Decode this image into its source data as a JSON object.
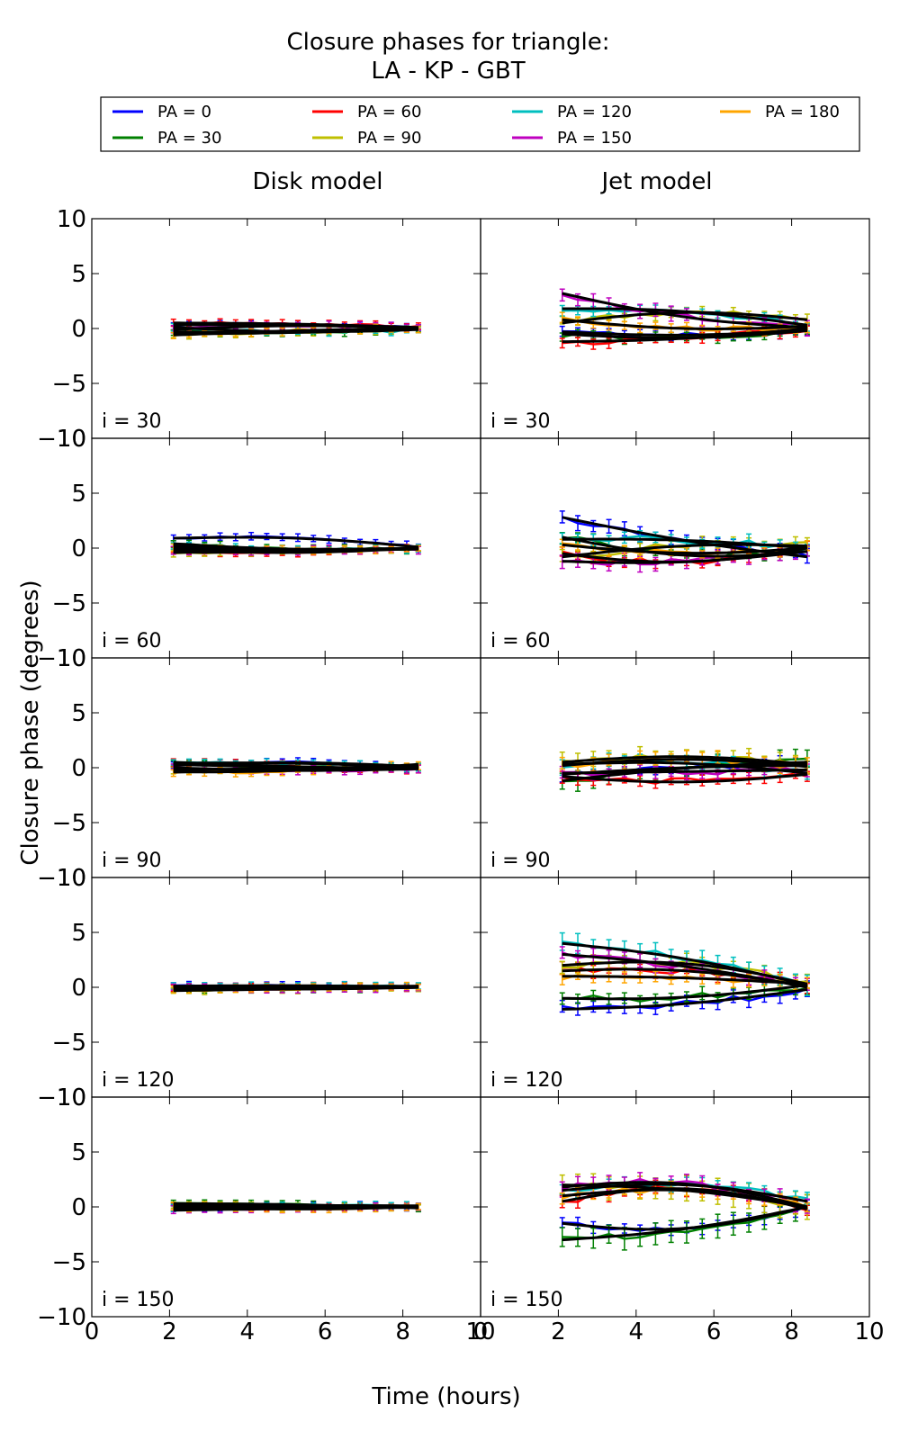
{
  "chart_data": {
    "type": "line",
    "title_line1": "Closure phases for triangle:",
    "title_line2": "LA - KP - GBT",
    "xlabel": "Time (hours)",
    "ylabel": "Closure phase (degrees)",
    "xlim": [
      0,
      10
    ],
    "ylim": [
      -10,
      10
    ],
    "x_ticks": [
      0,
      2,
      4,
      6,
      8,
      10
    ],
    "y_ticks": [
      -10,
      -5,
      0,
      5,
      10
    ],
    "x_tick_labels": [
      "0",
      "2",
      "4",
      "6",
      "8",
      "10"
    ],
    "y_tick_labels": [
      "−10",
      "−5",
      "0",
      "5",
      "10"
    ],
    "grid": false,
    "legend_position": "top",
    "legend": [
      {
        "label": "PA = 0",
        "color": "#0000ff"
      },
      {
        "label": "PA = 30",
        "color": "#008000"
      },
      {
        "label": "PA = 60",
        "color": "#ff0000"
      },
      {
        "label": "PA = 90",
        "color": "#bfbf00"
      },
      {
        "label": "PA = 120",
        "color": "#00bfbf"
      },
      {
        "label": "PA = 150",
        "color": "#bf00bf"
      },
      {
        "label": "PA = 180",
        "color": "#ffa500"
      }
    ],
    "model_line_color": "#000000",
    "columns": [
      "Disk model",
      "Jet model"
    ],
    "rows": [
      "i = 30",
      "i = 60",
      "i = 90",
      "i = 120",
      "i = 150"
    ],
    "x": [
      2.1,
      2.5,
      2.9,
      3.3,
      3.7,
      4.1,
      4.5,
      4.9,
      5.3,
      5.7,
      6.1,
      6.5,
      6.9,
      7.3,
      7.7,
      8.1,
      8.4
    ],
    "panels": [
      {
        "row": 0,
        "col": 0,
        "label": "i = 30",
        "series": [
          {
            "start": 0.3,
            "end": 0.0,
            "amp": 0.2,
            "noise": 0.15,
            "err": 0.3
          },
          {
            "start": -0.3,
            "end": 0.0,
            "amp": -0.2,
            "noise": 0.15,
            "err": 0.3
          },
          {
            "start": 0.5,
            "end": 0.1,
            "amp": 0.1,
            "noise": 0.15,
            "err": 0.3
          },
          {
            "start": -0.5,
            "end": 0.0,
            "amp": -0.1,
            "noise": 0.15,
            "err": 0.3
          },
          {
            "start": 0.1,
            "end": -0.1,
            "amp": -0.3,
            "noise": 0.2,
            "err": 0.3
          },
          {
            "start": -0.1,
            "end": 0.0,
            "amp": 0.3,
            "noise": 0.15,
            "err": 0.3
          },
          {
            "start": -0.6,
            "end": 0.0,
            "amp": 0.1,
            "noise": 0.15,
            "err": 0.3
          }
        ]
      },
      {
        "row": 0,
        "col": 1,
        "label": "i = 30",
        "series": [
          {
            "start": -0.3,
            "end": -0.1,
            "amp": -0.4,
            "noise": 0.25,
            "err": 0.4
          },
          {
            "start": -0.5,
            "end": -0.2,
            "amp": -0.5,
            "noise": 0.3,
            "err": 0.4
          },
          {
            "start": -1.2,
            "end": 0.0,
            "amp": -0.3,
            "noise": 0.3,
            "err": 0.4
          },
          {
            "start": 0.5,
            "end": 0.8,
            "amp": 0.8,
            "noise": 0.3,
            "err": 0.4
          },
          {
            "start": 1.8,
            "end": 0.3,
            "amp": 0.5,
            "noise": 0.25,
            "err": 0.4
          },
          {
            "start": 3.2,
            "end": 0.1,
            "amp": -0.6,
            "noise": 0.3,
            "err": 0.6
          },
          {
            "start": 0.8,
            "end": 0.2,
            "amp": -0.5,
            "noise": 0.25,
            "err": 0.4
          }
        ]
      },
      {
        "row": 1,
        "col": 0,
        "label": "i = 60",
        "series": [
          {
            "start": 0.9,
            "end": 0.1,
            "amp": 0.4,
            "noise": 0.1,
            "err": 0.3
          },
          {
            "start": 0.4,
            "end": 0.0,
            "amp": -0.3,
            "noise": 0.15,
            "err": 0.3
          },
          {
            "start": -0.2,
            "end": 0.0,
            "amp": -0.3,
            "noise": 0.1,
            "err": 0.3
          },
          {
            "start": -0.4,
            "end": 0.0,
            "amp": -0.1,
            "noise": 0.1,
            "err": 0.3
          },
          {
            "start": 0.2,
            "end": 0.0,
            "amp": -0.2,
            "noise": 0.1,
            "err": 0.3
          },
          {
            "start": -0.3,
            "end": -0.1,
            "amp": 0.0,
            "noise": 0.15,
            "err": 0.3
          },
          {
            "start": 0.0,
            "end": 0.0,
            "amp": -0.2,
            "noise": 0.1,
            "err": 0.3
          }
        ]
      },
      {
        "row": 1,
        "col": 1,
        "label": "i = 60",
        "series": [
          {
            "start": 2.8,
            "end": -0.8,
            "amp": -0.3,
            "noise": 0.3,
            "err": 0.6
          },
          {
            "start": 1.0,
            "end": -0.3,
            "amp": -1.0,
            "noise": 0.35,
            "err": 0.5
          },
          {
            "start": -0.5,
            "end": 0.0,
            "amp": -1.0,
            "noise": 0.3,
            "err": 0.4
          },
          {
            "start": -0.8,
            "end": 0.2,
            "amp": 0.5,
            "noise": 0.35,
            "err": 0.5
          },
          {
            "start": 0.8,
            "end": 0.0,
            "amp": 0.3,
            "noise": 0.3,
            "err": 0.5
          },
          {
            "start": -1.2,
            "end": -0.3,
            "amp": -0.5,
            "noise": 0.3,
            "err": 0.6
          },
          {
            "start": 0.3,
            "end": 0.0,
            "amp": -0.6,
            "noise": 0.3,
            "err": 0.4
          }
        ]
      },
      {
        "row": 2,
        "col": 0,
        "label": "i = 90",
        "series": [
          {
            "start": 0.2,
            "end": 0.1,
            "amp": 0.3,
            "noise": 0.12,
            "err": 0.3
          },
          {
            "start": 0.3,
            "end": 0.0,
            "amp": -0.1,
            "noise": 0.1,
            "err": 0.3
          },
          {
            "start": 0.5,
            "end": -0.1,
            "amp": -0.1,
            "noise": 0.1,
            "err": 0.4
          },
          {
            "start": -0.2,
            "end": 0.1,
            "amp": 0.0,
            "noise": 0.1,
            "err": 0.3
          },
          {
            "start": 0.4,
            "end": 0.0,
            "amp": 0.2,
            "noise": 0.1,
            "err": 0.3
          },
          {
            "start": 0.0,
            "end": -0.1,
            "amp": -0.2,
            "noise": 0.1,
            "err": 0.3
          },
          {
            "start": -0.4,
            "end": 0.3,
            "amp": -0.2,
            "noise": 0.15,
            "err": 0.3
          }
        ]
      },
      {
        "row": 2,
        "col": 1,
        "label": "i = 90",
        "series": [
          {
            "start": -0.6,
            "end": 0.2,
            "amp": 0.2,
            "noise": 0.3,
            "err": 0.6
          },
          {
            "start": -1.2,
            "end": 0.5,
            "amp": 0.3,
            "noise": 0.35,
            "err": 0.8
          },
          {
            "start": -0.8,
            "end": -0.6,
            "amp": -0.6,
            "noise": 0.35,
            "err": 0.5
          },
          {
            "start": 0.5,
            "end": 0.3,
            "amp": 0.6,
            "noise": 0.35,
            "err": 0.7
          },
          {
            "start": 0.3,
            "end": -0.5,
            "amp": 0.5,
            "noise": 0.3,
            "err": 0.6
          },
          {
            "start": -0.5,
            "end": -0.2,
            "amp": 0.0,
            "noise": 0.3,
            "err": 0.5
          },
          {
            "start": 0.2,
            "end": 0.1,
            "amp": 0.6,
            "noise": 0.3,
            "err": 0.6
          }
        ]
      },
      {
        "row": 3,
        "col": 0,
        "label": "i = 120",
        "series": [
          {
            "start": 0.1,
            "end": 0.0,
            "amp": 0.1,
            "noise": 0.08,
            "err": 0.3
          },
          {
            "start": -0.1,
            "end": 0.0,
            "amp": -0.1,
            "noise": 0.08,
            "err": 0.3
          },
          {
            "start": 0.0,
            "end": 0.0,
            "amp": 0.1,
            "noise": 0.08,
            "err": 0.3
          },
          {
            "start": -0.3,
            "end": 0.0,
            "amp": 0.0,
            "noise": 0.08,
            "err": 0.3
          },
          {
            "start": 0.1,
            "end": 0.1,
            "amp": 0.0,
            "noise": 0.08,
            "err": 0.3
          },
          {
            "start": 0.1,
            "end": 0.0,
            "amp": -0.2,
            "noise": 0.1,
            "err": 0.3
          },
          {
            "start": -0.2,
            "end": 0.1,
            "amp": 0.0,
            "noise": 0.08,
            "err": 0.3
          }
        ]
      },
      {
        "row": 3,
        "col": 1,
        "label": "i = 120",
        "series": [
          {
            "start": -2.0,
            "end": -0.2,
            "amp": -0.4,
            "noise": 0.3,
            "err": 0.6
          },
          {
            "start": -1.0,
            "end": 0.2,
            "amp": -0.5,
            "noise": 0.3,
            "err": 0.5
          },
          {
            "start": 1.5,
            "end": 0.1,
            "amp": 0.7,
            "noise": 0.35,
            "err": 0.5
          },
          {
            "start": 2.0,
            "end": 0.3,
            "amp": 1.0,
            "noise": 0.3,
            "err": 0.6
          },
          {
            "start": 4.0,
            "end": 0.2,
            "amp": 0.5,
            "noise": 0.3,
            "err": 0.8
          },
          {
            "start": 3.0,
            "end": 0.0,
            "amp": 0.4,
            "noise": 0.3,
            "err": 0.6
          },
          {
            "start": 1.0,
            "end": 0.3,
            "amp": 0.2,
            "noise": 0.3,
            "err": 0.5
          }
        ]
      },
      {
        "row": 4,
        "col": 0,
        "label": "i = 150",
        "series": [
          {
            "start": -0.2,
            "end": 0.0,
            "amp": 0.2,
            "noise": 0.08,
            "err": 0.3
          },
          {
            "start": 0.3,
            "end": -0.1,
            "amp": 0.1,
            "noise": 0.08,
            "err": 0.3
          },
          {
            "start": 0.1,
            "end": 0.0,
            "amp": 0.0,
            "noise": 0.08,
            "err": 0.3
          },
          {
            "start": 0.2,
            "end": 0.0,
            "amp": -0.1,
            "noise": 0.08,
            "err": 0.3
          },
          {
            "start": -0.1,
            "end": 0.1,
            "amp": 0.1,
            "noise": 0.08,
            "err": 0.3
          },
          {
            "start": -0.3,
            "end": 0.0,
            "amp": 0.0,
            "noise": 0.08,
            "err": 0.3
          },
          {
            "start": 0.0,
            "end": 0.0,
            "amp": -0.2,
            "noise": 0.1,
            "err": 0.3
          }
        ]
      },
      {
        "row": 4,
        "col": 1,
        "label": "i = 150",
        "series": [
          {
            "start": -1.5,
            "end": 0.0,
            "amp": -1.2,
            "noise": 0.25,
            "err": 0.5
          },
          {
            "start": -3.0,
            "end": 0.0,
            "amp": -0.5,
            "noise": 0.35,
            "err": 0.9
          },
          {
            "start": 0.5,
            "end": -0.2,
            "amp": 1.5,
            "noise": 0.3,
            "err": 0.5
          },
          {
            "start": 2.0,
            "end": 0.0,
            "amp": 0.5,
            "noise": 0.3,
            "err": 1.0
          },
          {
            "start": 1.5,
            "end": 0.5,
            "amp": 1.0,
            "noise": 0.3,
            "err": 0.5
          },
          {
            "start": 1.8,
            "end": 0.0,
            "amp": 1.2,
            "noise": 0.3,
            "err": 0.6
          },
          {
            "start": 1.0,
            "end": 0.0,
            "amp": 1.0,
            "noise": 0.3,
            "err": 0.5
          }
        ]
      }
    ]
  }
}
